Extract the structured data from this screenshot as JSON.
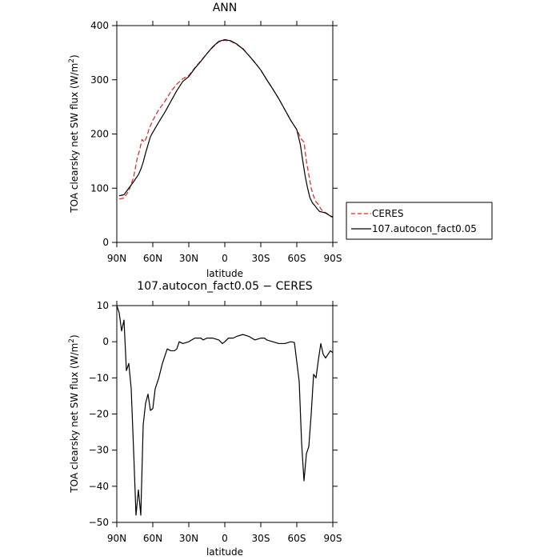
{
  "chart_data": [
    {
      "type": "line",
      "title": "ANN",
      "xlabel": "latitude",
      "ylabel": "TOA clearsky net SW flux (W/m",
      "ylabel_sup": "2",
      "ylabel_tail": ")",
      "xlim": [
        90,
        -90
      ],
      "ylim": [
        0,
        400
      ],
      "x_ticks": [
        90,
        60,
        30,
        0,
        -30,
        -60,
        -90
      ],
      "x_tick_labels": [
        "90N",
        "60N",
        "30N",
        "0",
        "30S",
        "60S",
        "90S"
      ],
      "y_ticks": [
        0,
        100,
        200,
        300,
        400
      ],
      "y_tick_labels": [
        "0",
        "100",
        "200",
        "300",
        "400"
      ],
      "legend_position": "right",
      "series": [
        {
          "name": "CERES",
          "color": "#e8201e",
          "dash": "dashed",
          "points": [
            [
              88,
              80
            ],
            [
              84,
              82
            ],
            [
              80,
              95
            ],
            [
              76,
              120
            ],
            [
              73,
              155
            ],
            [
              71,
              170
            ],
            [
              69,
              190
            ],
            [
              67,
              185
            ],
            [
              65,
              195
            ],
            [
              63,
              210
            ],
            [
              60,
              225
            ],
            [
              55,
              245
            ],
            [
              50,
              260
            ],
            [
              45,
              278
            ],
            [
              40,
              292
            ],
            [
              35,
              302
            ],
            [
              30,
              308
            ],
            [
              25,
              322
            ],
            [
              20,
              335
            ],
            [
              15,
              348
            ],
            [
              10,
              360
            ],
            [
              5,
              370
            ],
            [
              0,
              373
            ],
            [
              -5,
              371
            ],
            [
              -10,
              365
            ],
            [
              -15,
              358
            ],
            [
              -20,
              345
            ],
            [
              -25,
              332
            ],
            [
              -30,
              318
            ],
            [
              -35,
              300
            ],
            [
              -40,
              283
            ],
            [
              -45,
              265
            ],
            [
              -50,
              245
            ],
            [
              -55,
              225
            ],
            [
              -60,
              208
            ],
            [
              -64,
              190
            ],
            [
              -66,
              185
            ],
            [
              -68,
              150
            ],
            [
              -70,
              125
            ],
            [
              -72,
              100
            ],
            [
              -74,
              85
            ],
            [
              -76,
              75
            ],
            [
              -78,
              70
            ],
            [
              -80,
              62
            ],
            [
              -82,
              57
            ],
            [
              -84,
              55
            ],
            [
              -86,
              52
            ],
            [
              -88,
              48
            ],
            [
              -90,
              46
            ]
          ]
        },
        {
          "name": "107.autocon_fact0.05",
          "color": "#000000",
          "dash": "solid",
          "points": [
            [
              88,
              86
            ],
            [
              84,
              88
            ],
            [
              80,
              100
            ],
            [
              76,
              112
            ],
            [
              72,
              125
            ],
            [
              70,
              135
            ],
            [
              68,
              148
            ],
            [
              66,
              165
            ],
            [
              64,
              180
            ],
            [
              62,
              195
            ],
            [
              60,
              203
            ],
            [
              55,
              222
            ],
            [
              50,
              240
            ],
            [
              45,
              260
            ],
            [
              40,
              280
            ],
            [
              35,
              297
            ],
            [
              30,
              306
            ],
            [
              25,
              321
            ],
            [
              20,
              334
            ],
            [
              15,
              348
            ],
            [
              10,
              361
            ],
            [
              5,
              371
            ],
            [
              0,
              374
            ],
            [
              -5,
              372
            ],
            [
              -10,
              366
            ],
            [
              -15,
              357
            ],
            [
              -20,
              345
            ],
            [
              -25,
              332
            ],
            [
              -30,
              318
            ],
            [
              -35,
              300
            ],
            [
              -40,
              283
            ],
            [
              -45,
              265
            ],
            [
              -50,
              245
            ],
            [
              -55,
              225
            ],
            [
              -60,
              208
            ],
            [
              -63,
              180
            ],
            [
              -65,
              150
            ],
            [
              -67,
              122
            ],
            [
              -69,
              100
            ],
            [
              -71,
              82
            ],
            [
              -73,
              73
            ],
            [
              -75,
              68
            ],
            [
              -77,
              62
            ],
            [
              -79,
              57
            ],
            [
              -81,
              56
            ],
            [
              -83,
              55
            ],
            [
              -85,
              53
            ],
            [
              -87,
              50
            ],
            [
              -90,
              47
            ]
          ]
        }
      ]
    },
    {
      "type": "line",
      "title": "107.autocon_fact0.05 − CERES",
      "xlabel": "latitude",
      "ylabel": "TOA clearsky net SW flux (W/m",
      "ylabel_sup": "2",
      "ylabel_tail": ")",
      "xlim": [
        90,
        -90
      ],
      "ylim": [
        -50,
        10
      ],
      "x_ticks": [
        90,
        60,
        30,
        0,
        -30,
        -60,
        -90
      ],
      "x_tick_labels": [
        "90N",
        "60N",
        "30N",
        "0",
        "30S",
        "60S",
        "90S"
      ],
      "y_ticks": [
        -50,
        -40,
        -30,
        -20,
        -10,
        0,
        10
      ],
      "y_tick_labels": [
        "−50",
        "−40",
        "−30",
        "−20",
        "−10",
        "0",
        "10"
      ],
      "series": [
        {
          "color": "#000000",
          "dash": "solid",
          "points": [
            [
              90,
              10
            ],
            [
              88,
              8
            ],
            [
              86,
              3
            ],
            [
              84,
              6
            ],
            [
              82,
              -8
            ],
            [
              80,
              -6
            ],
            [
              78,
              -13
            ],
            [
              76,
              -30
            ],
            [
              74,
              -48
            ],
            [
              72,
              -41
            ],
            [
              70,
              -48
            ],
            [
              68,
              -23
            ],
            [
              66,
              -17
            ],
            [
              64,
              -14.5
            ],
            [
              62,
              -19
            ],
            [
              60,
              -18.5
            ],
            [
              58,
              -13
            ],
            [
              55,
              -10
            ],
            [
              52,
              -6
            ],
            [
              48,
              -2
            ],
            [
              45,
              -2.5
            ],
            [
              42,
              -2.5
            ],
            [
              40,
              -2
            ],
            [
              38,
              0
            ],
            [
              35,
              -0.5
            ],
            [
              30,
              0
            ],
            [
              25,
              1
            ],
            [
              20,
              1
            ],
            [
              18,
              0.5
            ],
            [
              15,
              1
            ],
            [
              10,
              1
            ],
            [
              5,
              0.5
            ],
            [
              2,
              -0.5
            ],
            [
              0,
              0
            ],
            [
              -3,
              1
            ],
            [
              -7,
              1
            ],
            [
              -10,
              1.5
            ],
            [
              -15,
              2
            ],
            [
              -20,
              1.5
            ],
            [
              -25,
              0.5
            ],
            [
              -30,
              1
            ],
            [
              -33,
              1
            ],
            [
              -35,
              0.5
            ],
            [
              -40,
              0
            ],
            [
              -45,
              -0.5
            ],
            [
              -50,
              -0.5
            ],
            [
              -55,
              0
            ],
            [
              -58,
              -0.2
            ],
            [
              -62,
              -11
            ],
            [
              -64,
              -28
            ],
            [
              -66,
              -38.5
            ],
            [
              -68,
              -31
            ],
            [
              -70,
              -29
            ],
            [
              -72,
              -20
            ],
            [
              -74,
              -9
            ],
            [
              -76,
              -10
            ],
            [
              -78,
              -5
            ],
            [
              -80,
              -0.5
            ],
            [
              -82,
              -3.5
            ],
            [
              -84,
              -4.5
            ],
            [
              -86,
              -3.5
            ],
            [
              -88,
              -2.5
            ],
            [
              -90,
              -3
            ]
          ]
        }
      ]
    }
  ]
}
